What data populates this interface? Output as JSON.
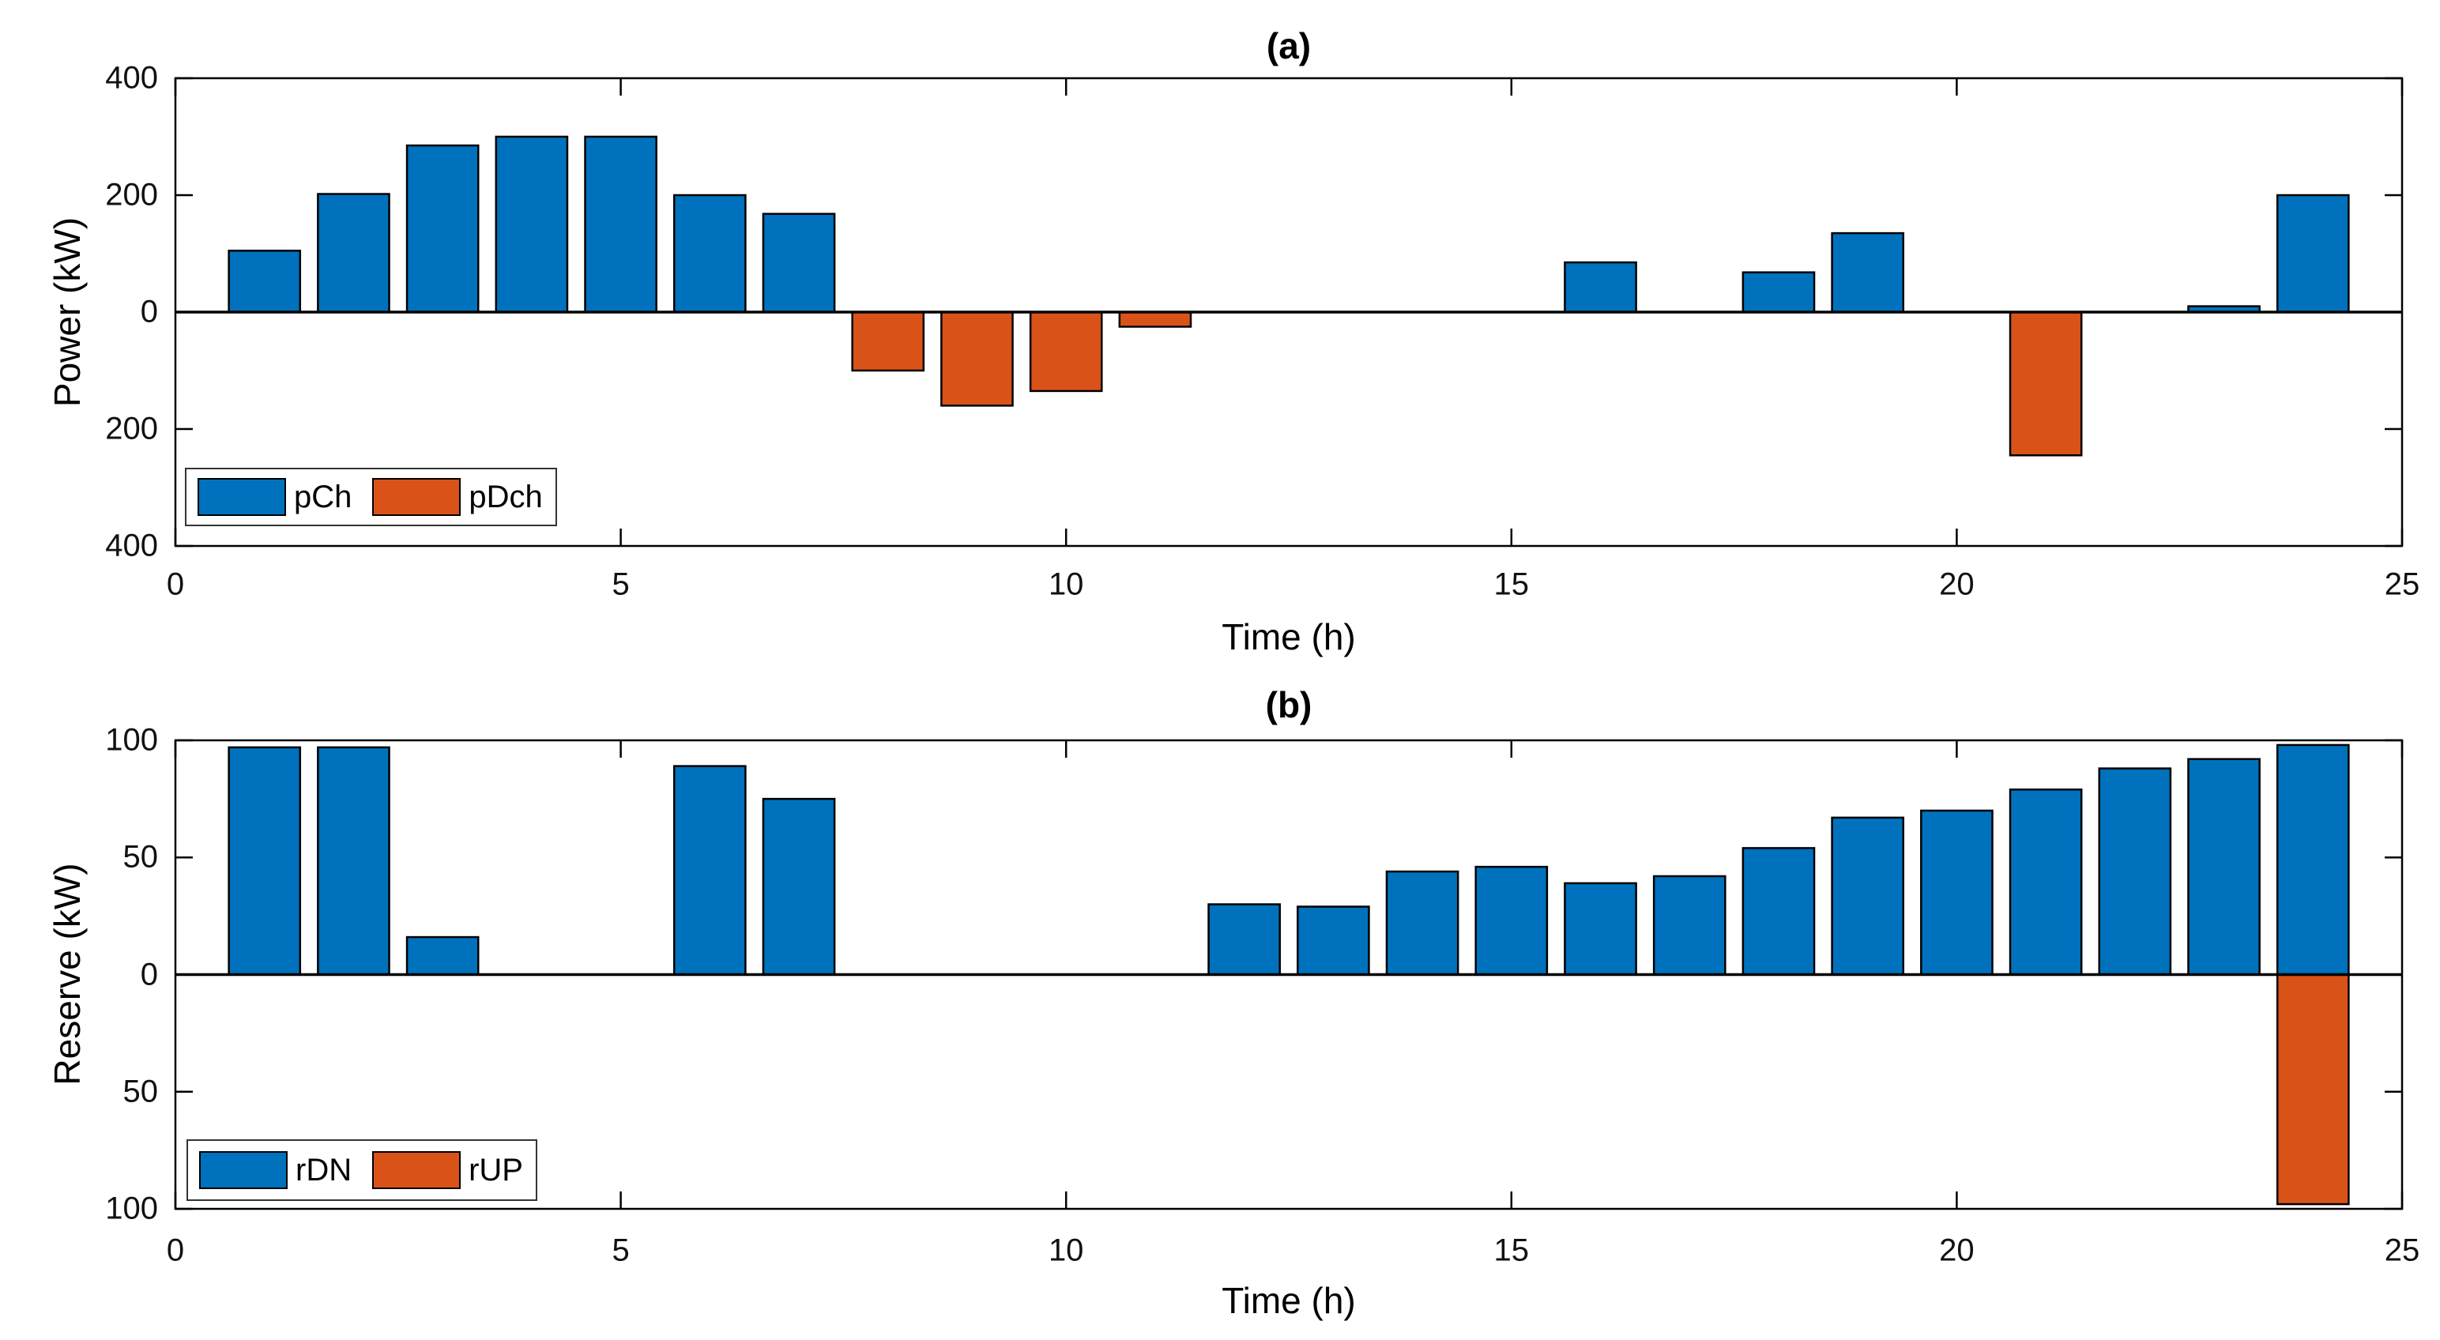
{
  "figure": {
    "background": "#ffffff",
    "colors": {
      "blue": "#0072BD",
      "orange": "#D95319",
      "axis": "#000000",
      "tick_label": "#111111"
    }
  },
  "chart_data": [
    {
      "id": "a",
      "type": "bar",
      "title": "(a)",
      "xlabel": "Time (h)",
      "ylabel": "Power (kW)",
      "x": [
        1,
        2,
        3,
        4,
        5,
        6,
        7,
        8,
        9,
        10,
        11,
        12,
        13,
        14,
        15,
        16,
        17,
        18,
        19,
        20,
        21,
        22,
        23,
        24
      ],
      "series": [
        {
          "name": "pCh",
          "color": "#0072BD",
          "values": [
            105,
            202,
            285,
            300,
            300,
            200,
            168,
            0,
            0,
            0,
            0,
            0,
            0,
            0,
            0,
            85,
            0,
            68,
            135,
            0,
            0,
            0,
            10,
            200
          ]
        },
        {
          "name": "pDch",
          "color": "#D95319",
          "values": [
            0,
            0,
            0,
            0,
            0,
            0,
            0,
            -100,
            -160,
            -135,
            -25,
            0,
            0,
            0,
            0,
            0,
            0,
            0,
            0,
            0,
            -245,
            0,
            0,
            0
          ]
        }
      ],
      "xlim": [
        0,
        25
      ],
      "ylim": [
        -400,
        400
      ],
      "xticks": [
        0,
        5,
        10,
        15,
        20,
        25
      ],
      "xtick_labels": [
        "0",
        "5",
        "10",
        "15",
        "20",
        "25"
      ],
      "yticks": [
        400,
        200,
        0,
        -200,
        -400
      ],
      "ytick_labels": [
        "400",
        "200",
        "0",
        "200",
        "400"
      ],
      "grid": false,
      "legend_location": "southwest"
    },
    {
      "id": "b",
      "type": "bar",
      "title": "(b)",
      "xlabel": "Time (h)",
      "ylabel": "Reserve (kW)",
      "x": [
        1,
        2,
        3,
        4,
        5,
        6,
        7,
        8,
        9,
        10,
        11,
        12,
        13,
        14,
        15,
        16,
        17,
        18,
        19,
        20,
        21,
        22,
        23,
        24
      ],
      "series": [
        {
          "name": "rDN",
          "color": "#0072BD",
          "values": [
            97,
            97,
            16,
            0,
            0,
            89,
            75,
            0,
            0,
            0,
            0,
            30,
            29,
            44,
            46,
            39,
            42,
            54,
            67,
            70,
            79,
            88,
            92,
            98
          ]
        },
        {
          "name": "rUP",
          "color": "#D95319",
          "values": [
            0,
            0,
            0,
            0,
            0,
            0,
            0,
            0,
            0,
            0,
            0,
            0,
            0,
            0,
            0,
            0,
            0,
            0,
            0,
            0,
            0,
            0,
            0,
            -98
          ]
        }
      ],
      "xlim": [
        0,
        25
      ],
      "ylim": [
        -100,
        100
      ],
      "xticks": [
        0,
        5,
        10,
        15,
        20,
        25
      ],
      "xtick_labels": [
        "0",
        "5",
        "10",
        "15",
        "20",
        "25"
      ],
      "yticks": [
        100,
        50,
        0,
        -50,
        -100
      ],
      "ytick_labels": [
        "100",
        "50",
        "0",
        "50",
        "100"
      ],
      "grid": false,
      "legend_location": "southwest"
    }
  ]
}
